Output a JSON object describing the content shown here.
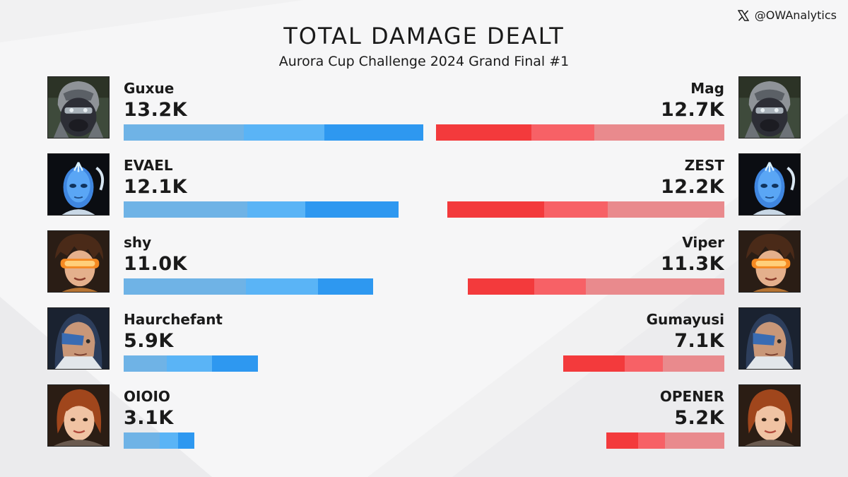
{
  "credit": {
    "handle": "@OWAnalytics",
    "icon": "x-logo-icon"
  },
  "chart_data": {
    "type": "bar",
    "title": "TOTAL DAMAGE DEALT",
    "subtitle": "Aurora Cup Challenge 2024 Grand Final #1",
    "layout": "mirrored-horizontal",
    "unit": "K",
    "xlim": [
      0,
      13.5
    ],
    "rows": [
      {
        "hero": "winston",
        "left": {
          "player": "Guxue",
          "value": 13.2,
          "label": "13.2K",
          "segments": [
            0.4,
            0.27,
            0.33
          ]
        },
        "right": {
          "player": "Mag",
          "value": 12.7,
          "label": "12.7K",
          "segments": [
            0.33,
            0.22,
            0.45
          ]
        }
      },
      {
        "hero": "echo",
        "left": {
          "player": "EVAEL",
          "value": 12.1,
          "label": "12.1K",
          "segments": [
            0.45,
            0.21,
            0.34
          ]
        },
        "right": {
          "player": "ZEST",
          "value": 12.2,
          "label": "12.2K",
          "segments": [
            0.35,
            0.23,
            0.42
          ]
        }
      },
      {
        "hero": "tracer",
        "left": {
          "player": "shy",
          "value": 11.0,
          "label": "11.0K",
          "segments": [
            0.49,
            0.29,
            0.22
          ]
        },
        "right": {
          "player": "Viper",
          "value": 11.3,
          "label": "11.3K",
          "segments": [
            0.26,
            0.2,
            0.54
          ]
        }
      },
      {
        "hero": "ana",
        "left": {
          "player": "Haurchefant",
          "value": 5.9,
          "label": "5.9K",
          "segments": [
            0.32,
            0.34,
            0.34
          ]
        },
        "right": {
          "player": "Gumayusi",
          "value": 7.1,
          "label": "7.1K",
          "segments": [
            0.38,
            0.24,
            0.38
          ]
        }
      },
      {
        "hero": "brigitte",
        "left": {
          "player": "OIOIO",
          "value": 3.1,
          "label": "3.1K",
          "segments": [
            0.51,
            0.26,
            0.23
          ]
        },
        "right": {
          "player": "OPENER",
          "value": 5.2,
          "label": "5.2K",
          "segments": [
            0.27,
            0.23,
            0.5
          ]
        }
      }
    ],
    "colors": {
      "left": [
        "#6fb3e6",
        "#5ab4f6",
        "#2e98f0"
      ],
      "right": [
        "#f33a3c",
        "#f76166",
        "#e98a8d"
      ]
    }
  }
}
